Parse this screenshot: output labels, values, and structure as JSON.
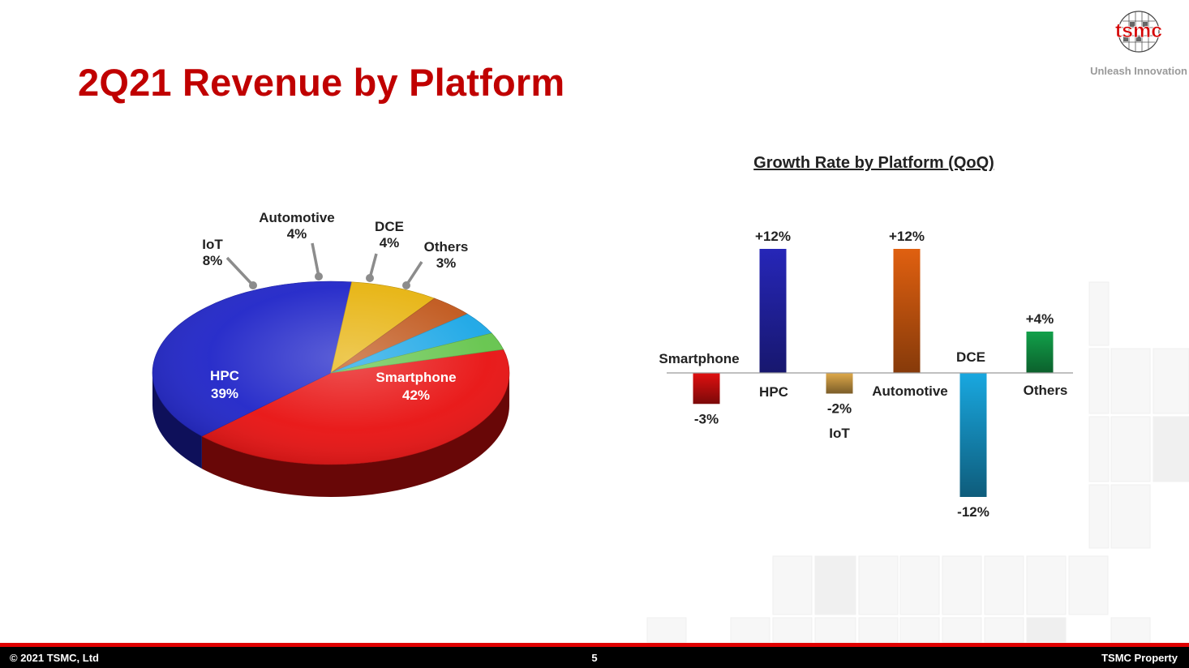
{
  "slide": {
    "title": "2Q21 Revenue by Platform",
    "brand": "tsmc",
    "tagline": "Unleash Innovation"
  },
  "footer": {
    "copyright": "© 2021 TSMC, Ltd",
    "page_number": "5",
    "property": "TSMC Property"
  },
  "chart_data": [
    {
      "type": "pie",
      "title": "",
      "slices": [
        {
          "label": "Smartphone",
          "value": 42,
          "display": "42%",
          "color": "#e81010"
        },
        {
          "label": "HPC",
          "value": 39,
          "display": "39%",
          "color": "#1f24c8"
        },
        {
          "label": "IoT",
          "value": 8,
          "display": "8%",
          "color": "#e7b30e"
        },
        {
          "label": "Automotive",
          "value": 4,
          "display": "4%",
          "color": "#c0561a"
        },
        {
          "label": "DCE",
          "value": 4,
          "display": "4%",
          "color": "#19a6e6"
        },
        {
          "label": "Others",
          "value": 3,
          "display": "3%",
          "color": "#63c44a"
        }
      ]
    },
    {
      "type": "bar",
      "title": "Growth Rate by Platform (QoQ)",
      "categories": [
        "Smartphone",
        "HPC",
        "IoT",
        "Automotive",
        "DCE",
        "Others"
      ],
      "values": [
        -3,
        12,
        -2,
        12,
        -12,
        4
      ],
      "value_labels": [
        "-3%",
        "+12%",
        "-2%",
        "+12%",
        "-12%",
        "+4%"
      ],
      "colors": [
        "#e01010",
        "#2626b8",
        "#dfa94a",
        "#e06010",
        "#19a8e0",
        "#12a04a"
      ],
      "ylim": [
        -12,
        12
      ],
      "grid": false
    }
  ]
}
